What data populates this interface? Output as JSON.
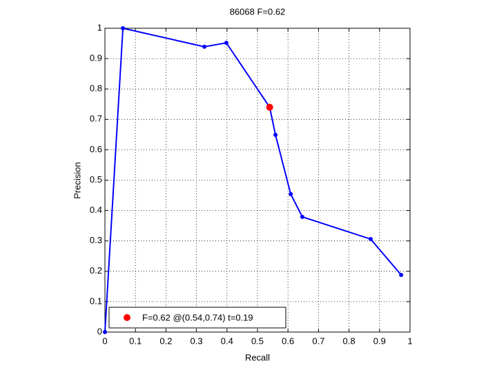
{
  "chart_data": {
    "type": "line",
    "title": "86068 F=0.62",
    "xlabel": "Recall",
    "ylabel": "Precision",
    "x": [
      0,
      0.059,
      0.326,
      0.398,
      0.54,
      0.559,
      0.609,
      0.647,
      0.871,
      0.971
    ],
    "values": [
      0,
      1,
      0.939,
      0.952,
      0.74,
      0.649,
      0.454,
      0.379,
      0.306,
      0.188
    ],
    "color": "#0000ff",
    "xlim": [
      0,
      1
    ],
    "ylim": [
      0,
      1
    ],
    "xticks": [
      0,
      0.1,
      0.2,
      0.3,
      0.4,
      0.5,
      0.6,
      0.7,
      0.8,
      0.9,
      1
    ],
    "yticks": [
      0,
      0.1,
      0.2,
      0.3,
      0.4,
      0.5,
      0.6,
      0.7,
      0.8,
      0.9,
      1
    ],
    "grid": true,
    "highlight": {
      "x": 0.54,
      "y": 0.74,
      "color": "#ff0000",
      "label": "F=0.62 @(0.54,0.74) t=0.19"
    },
    "legend": "lower left"
  }
}
